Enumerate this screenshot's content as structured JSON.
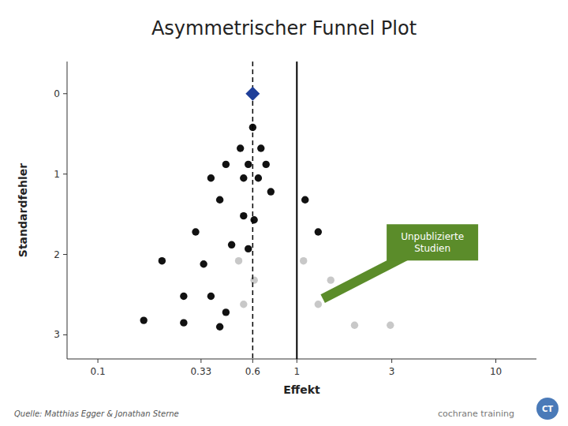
{
  "chart_data": {
    "type": "scatter",
    "title": "Asymmetrischer Funnel Plot",
    "x_label": "Effekt",
    "y_label": "Standardfehler",
    "log": "x",
    "grid": false,
    "xlim": [
      0.07,
      16
    ],
    "xticks": [
      0.1,
      0.33,
      0.6,
      1,
      3,
      10
    ],
    "ylim": [
      3.3,
      -0.4
    ],
    "yticks": [
      0,
      1,
      2,
      3
    ],
    "series": [
      {
        "color": "#C8C8C8",
        "x": [
          0.51,
          0.61,
          0.54,
          1.08,
          1.48,
          1.28,
          1.95,
          2.95
        ],
        "values": [
          2.08,
          2.32,
          2.62,
          2.08,
          2.32,
          2.62,
          2.88,
          2.88
        ]
      },
      {
        "color": "#111111",
        "x": [
          0.6,
          0.52,
          0.66,
          0.44,
          0.57,
          0.7,
          0.37,
          0.54,
          0.64,
          0.74,
          0.41,
          0.54,
          0.61,
          0.31,
          0.47,
          0.57,
          0.21,
          0.34,
          0.27,
          0.37,
          0.44,
          0.17,
          0.27,
          0.41,
          1.1,
          1.28
        ],
        "values": [
          0.42,
          0.68,
          0.68,
          0.88,
          0.88,
          0.88,
          1.05,
          1.05,
          1.05,
          1.22,
          1.32,
          1.52,
          1.57,
          1.72,
          1.88,
          1.93,
          2.08,
          2.12,
          2.52,
          2.52,
          2.72,
          2.82,
          2.85,
          2.9,
          1.32,
          1.72
        ]
      },
      {
        "color": "#1F3F99",
        "marker": "diamond",
        "x": [
          0.6
        ],
        "values": [
          0.0
        ]
      }
    ],
    "vlines": [
      {
        "x": 0.6,
        "line_style": "dashed"
      },
      {
        "x": 1.0,
        "line_style": "solid"
      }
    ],
    "annotations": [
      {
        "text": "Unpublizierte\nStudien",
        "x": 1.35,
        "y": 2.55,
        "text_x": 4.8,
        "text_y": 1.85,
        "color": "#5B8C2A"
      }
    ],
    "source": "Quelle: Matthias Egger & Jonathan Sterne",
    "credit": "cochrane training",
    "logo": "CT"
  }
}
